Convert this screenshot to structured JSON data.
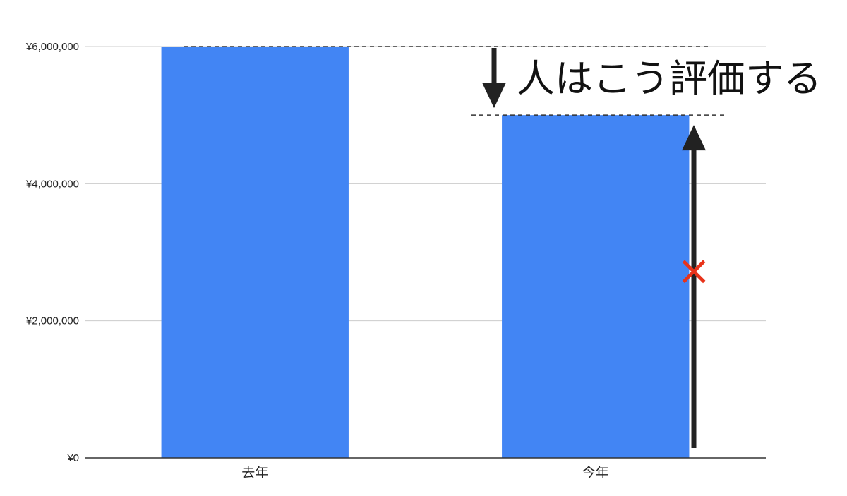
{
  "chart_data": {
    "type": "bar",
    "categories": [
      "去年",
      "今年"
    ],
    "values": [
      6000000,
      5000000
    ],
    "ylim": [
      0,
      6000000
    ],
    "yticks": [
      0,
      2000000,
      4000000,
      6000000
    ],
    "ytick_labels": [
      "¥0",
      "¥2,000,000",
      "¥4,000,000",
      "¥6,000,000"
    ],
    "grid": true,
    "legend": "none",
    "bar_color": "#4285f4",
    "annotations": {
      "text": "人はこう評価する",
      "marker": "×",
      "marker_color": "#e8331a",
      "arrow_color": "#222222"
    }
  }
}
